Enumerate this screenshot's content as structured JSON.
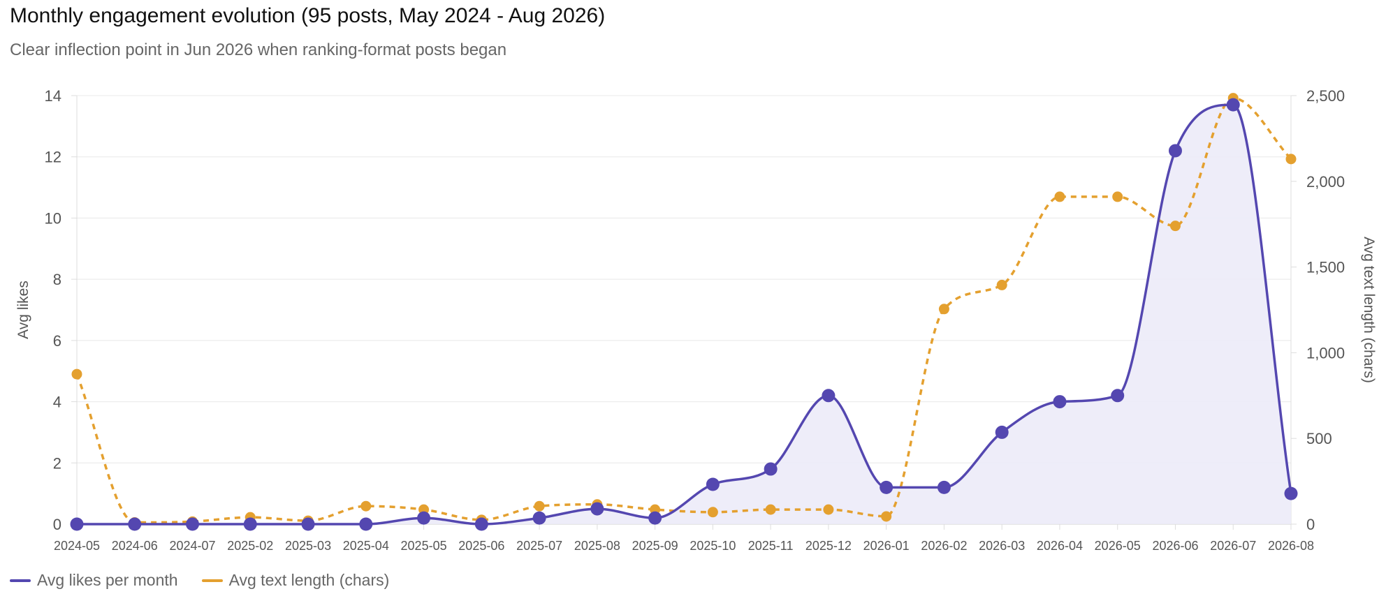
{
  "colors": {
    "likes": "#5447B0",
    "likes_fill": "#ECEBF8",
    "text": "#E4A02F",
    "grid": "#E8E8E8",
    "axis_text": "#555555"
  },
  "chart_data": {
    "type": "line",
    "title": "Monthly engagement evolution (95 posts, May 2024 - Aug 2026)",
    "subtitle": "Clear inflection point in Jun 2026 when ranking-format posts began",
    "categories": [
      "2024-05",
      "2024-06",
      "2024-07",
      "2025-02",
      "2025-03",
      "2025-04",
      "2025-05",
      "2025-06",
      "2025-07",
      "2025-08",
      "2025-09",
      "2025-10",
      "2025-11",
      "2025-12",
      "2026-01",
      "2026-02",
      "2026-03",
      "2026-04",
      "2026-05",
      "2026-06",
      "2026-07",
      "2026-08"
    ],
    "ylabel": "Avg likes",
    "y2label": "Avg text length (chars)",
    "ylim": [
      0,
      14
    ],
    "y2lim": [
      0,
      2500
    ],
    "yticks": [
      "0",
      "2",
      "4",
      "6",
      "8",
      "10",
      "12",
      "14"
    ],
    "y2ticks": [
      "0",
      "500",
      "1,000",
      "1,500",
      "2,000",
      "2,500"
    ],
    "grid": true,
    "legend_position": "bottom-left",
    "series": [
      {
        "name": "Avg likes per month",
        "axis": "left",
        "style": "solid-area",
        "values": [
          0,
          0,
          0,
          0,
          0,
          0,
          0.2,
          0,
          0.2,
          0.5,
          0.2,
          1.3,
          1.8,
          4.2,
          1.2,
          1.2,
          3.0,
          4.0,
          4.2,
          12.2,
          13.7,
          1.0
        ]
      },
      {
        "name": "Avg text length (chars)",
        "axis": "right",
        "style": "dashed",
        "values": [
          875,
          10,
          15,
          40,
          20,
          105,
          85,
          25,
          105,
          115,
          85,
          70,
          85,
          85,
          45,
          1255,
          1395,
          1910,
          1910,
          1740,
          2485,
          2130
        ]
      }
    ]
  }
}
